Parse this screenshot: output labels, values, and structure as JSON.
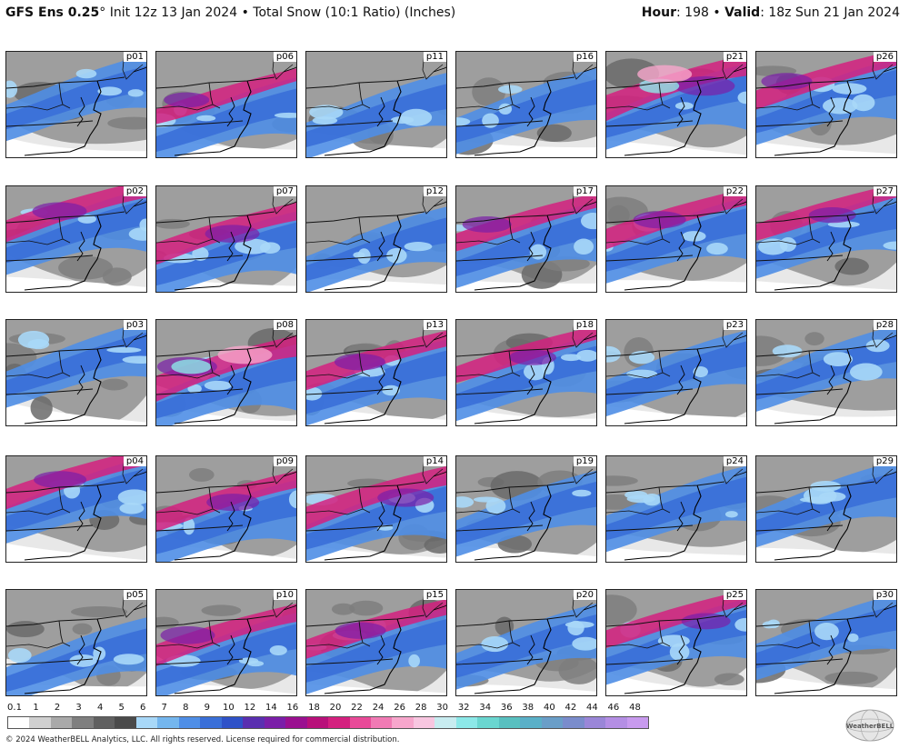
{
  "header": {
    "model": "GFS Ens 0.25",
    "degree": "°",
    "init": " Init 12z 13 Jan 2024 • Total Snow (10:1 Ratio) (Inches)",
    "hour_label": "Hour",
    "hour_value": ": 198 • ",
    "valid_label": "Valid",
    "valid_value": ": 18z Sun 21 Jan 2024"
  },
  "panels": [
    {
      "label": "p01",
      "intensity": 0.35
    },
    {
      "label": "p06",
      "intensity": 0.55
    },
    {
      "label": "p11",
      "intensity": 0.35
    },
    {
      "label": "p16",
      "intensity": 0.3
    },
    {
      "label": "p21",
      "intensity": 0.95
    },
    {
      "label": "p26",
      "intensity": 0.7
    },
    {
      "label": "p02",
      "intensity": 0.8
    },
    {
      "label": "p07",
      "intensity": 0.8
    },
    {
      "label": "p12",
      "intensity": 0.5
    },
    {
      "label": "p17",
      "intensity": 0.65
    },
    {
      "label": "p22",
      "intensity": 0.75
    },
    {
      "label": "p27",
      "intensity": 0.6
    },
    {
      "label": "p03",
      "intensity": 0.45
    },
    {
      "label": "p08",
      "intensity": 0.95
    },
    {
      "label": "p13",
      "intensity": 0.7
    },
    {
      "label": "p18",
      "intensity": 0.6
    },
    {
      "label": "p23",
      "intensity": 0.4
    },
    {
      "label": "p28",
      "intensity": 0.35
    },
    {
      "label": "p04",
      "intensity": 0.75
    },
    {
      "label": "p09",
      "intensity": 0.75
    },
    {
      "label": "p14",
      "intensity": 0.85
    },
    {
      "label": "p19",
      "intensity": 0.45
    },
    {
      "label": "p24",
      "intensity": 0.45
    },
    {
      "label": "p29",
      "intensity": 0.5
    },
    {
      "label": "p05",
      "intensity": 0.4
    },
    {
      "label": "p10",
      "intensity": 0.8
    },
    {
      "label": "p15",
      "intensity": 0.7
    },
    {
      "label": "p20",
      "intensity": 0.45
    },
    {
      "label": "p25",
      "intensity": 0.65
    },
    {
      "label": "p30",
      "intensity": 0.45
    }
  ],
  "legend": {
    "ticks": [
      "0.1",
      "1",
      "2",
      "3",
      "4",
      "5",
      "6",
      "7",
      "8",
      "9",
      "10",
      "12",
      "14",
      "16",
      "18",
      "20",
      "22",
      "24",
      "26",
      "28",
      "30",
      "32",
      "34",
      "36",
      "38",
      "40",
      "42",
      "44",
      "46",
      "48"
    ],
    "colors": [
      "#ffffff",
      "#d0d0d0",
      "#a9a9a9",
      "#7f7f7f",
      "#606060",
      "#4a4a4a",
      "#a8d8f8",
      "#74b6ee",
      "#4f8ee6",
      "#3a6fd8",
      "#2f52c8",
      "#5a2fb0",
      "#7a1ea8",
      "#9a1090",
      "#b8107a",
      "#d4207f",
      "#e84a98",
      "#f07ab4",
      "#f7a6cc",
      "#f8c6e0",
      "#c8ecf0",
      "#8ce8e8",
      "#6ad6d0",
      "#58c0c0",
      "#5ab0c8",
      "#6a9ec8",
      "#7a8ccc",
      "#9a86d8",
      "#b48ee4",
      "#c89aee"
    ]
  },
  "footer": "© 2024 WeatherBELL Analytics, LLC. All rights reserved. License required for commercial distribution.",
  "logo": {
    "icon": "weatherbell-globe-logo",
    "text": "WeatherBELL"
  }
}
